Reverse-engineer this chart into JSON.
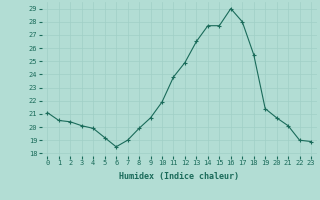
{
  "x": [
    0,
    1,
    2,
    3,
    4,
    5,
    6,
    7,
    8,
    9,
    10,
    11,
    12,
    13,
    14,
    15,
    16,
    17,
    18,
    19,
    20,
    21,
    22,
    23
  ],
  "y": [
    21.1,
    20.5,
    20.4,
    20.1,
    19.9,
    19.2,
    18.5,
    19.0,
    19.9,
    20.7,
    21.9,
    23.8,
    24.9,
    26.5,
    27.7,
    27.7,
    29.0,
    28.0,
    25.5,
    21.4,
    20.7,
    20.1,
    19.0,
    18.9
  ],
  "line_color": "#1a6b5a",
  "marker": "+",
  "marker_size": 3,
  "marker_lw": 0.8,
  "bg_color": "#b2ddd4",
  "grid_color": "#a0cfc6",
  "xlabel": "Humidex (Indice chaleur)",
  "ylabel_ticks": [
    18,
    19,
    20,
    21,
    22,
    23,
    24,
    25,
    26,
    27,
    28,
    29
  ],
  "xlim": [
    -0.5,
    23.5
  ],
  "ylim": [
    17.8,
    29.5
  ],
  "tick_color": "#1a6b5a",
  "label_color": "#1a6b5a",
  "tick_fontsize": 5.0,
  "xlabel_fontsize": 6.0
}
